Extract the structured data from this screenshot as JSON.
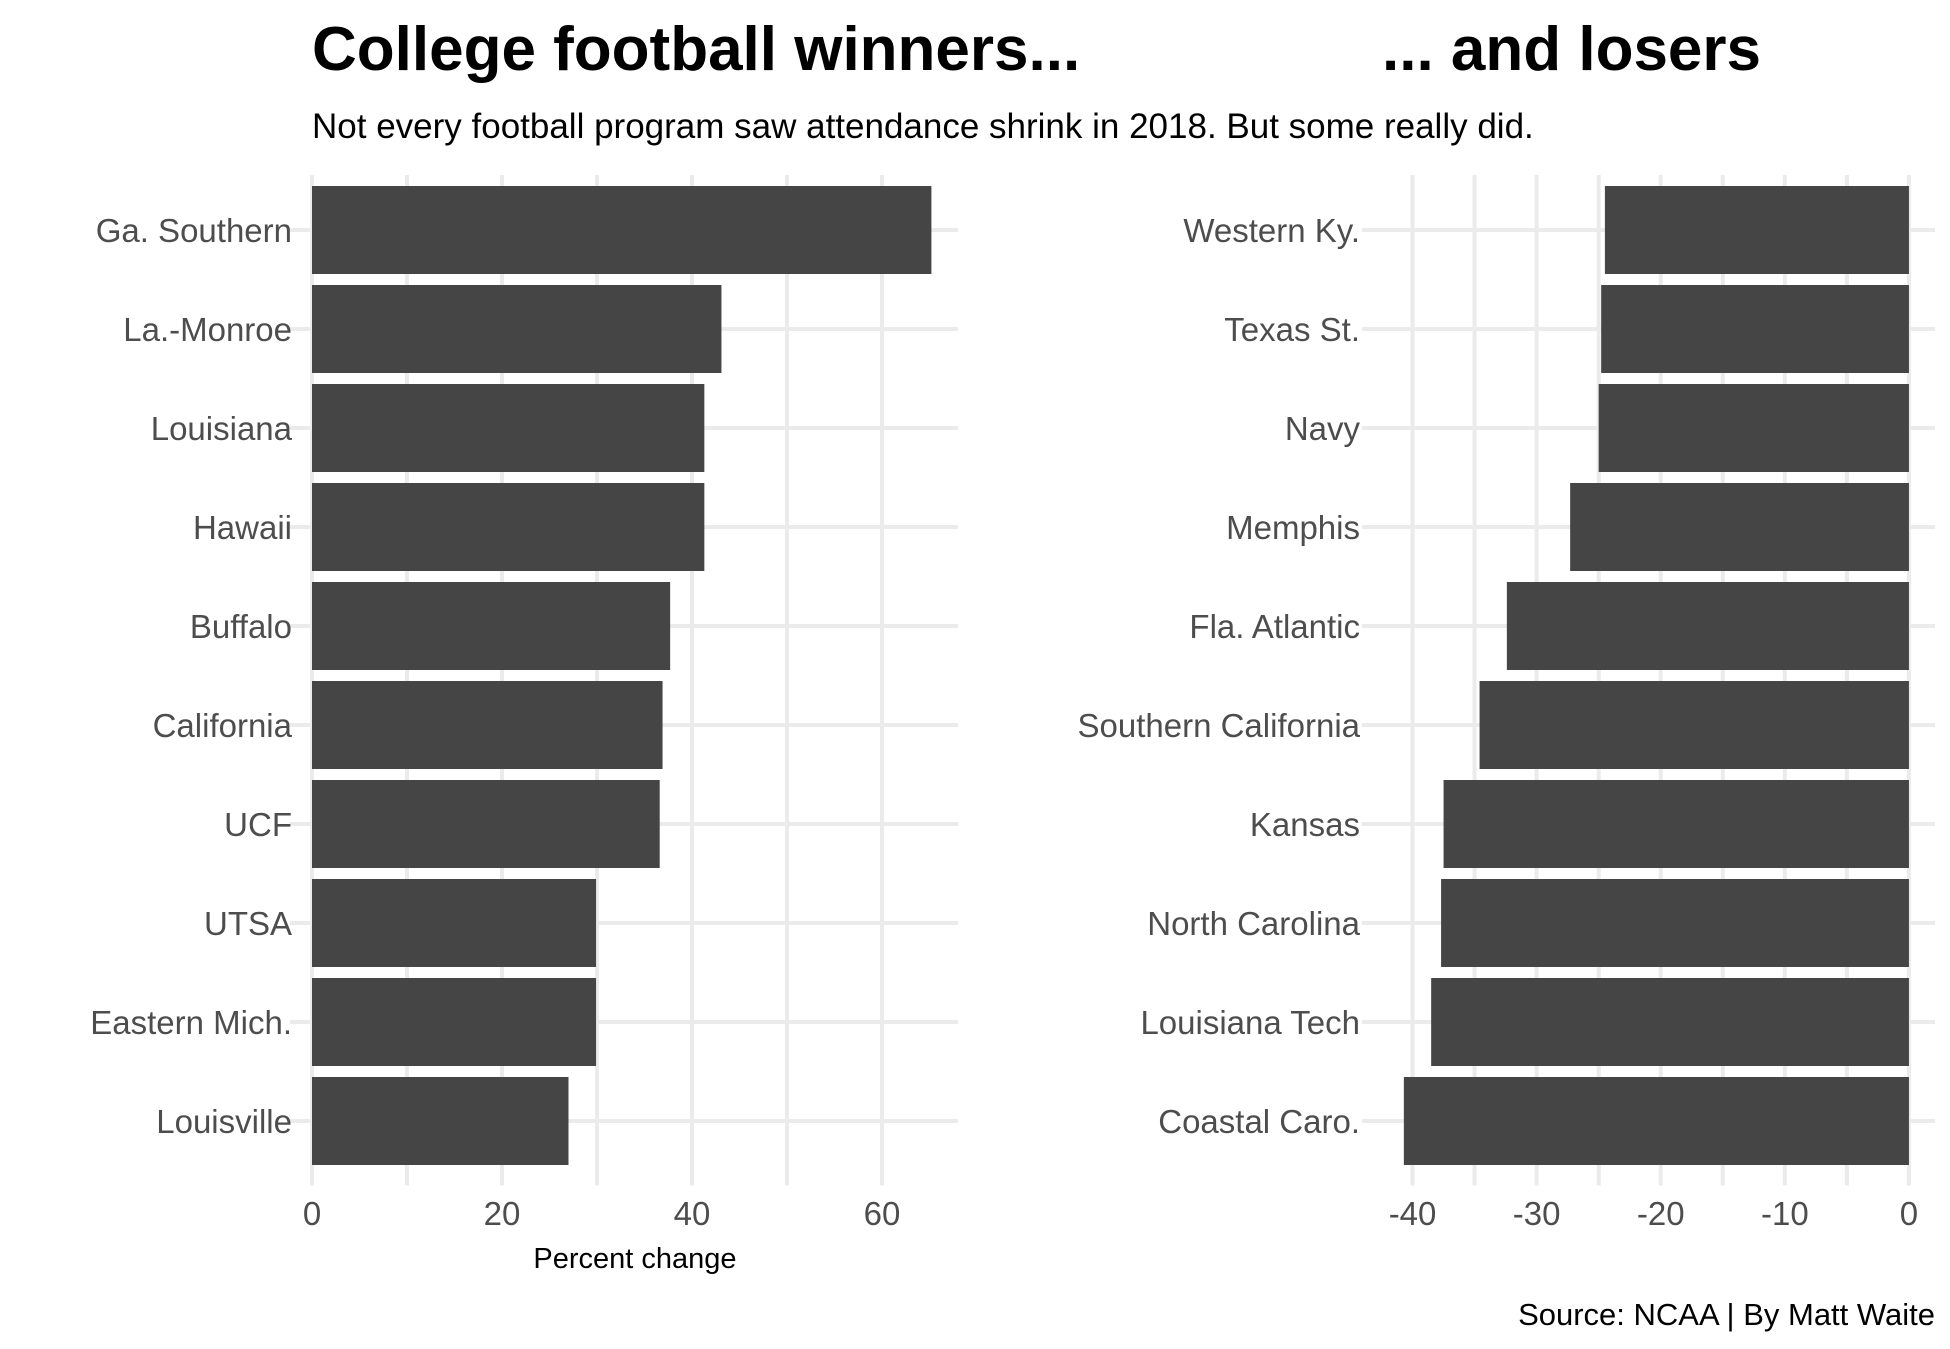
{
  "colors": {
    "bar": "#454545",
    "grid": "#ebebeb",
    "label": "#4d4d4d"
  },
  "chart_data": [
    {
      "type": "bar",
      "orientation": "horizontal",
      "title": "College football winners...",
      "subtitle": "Not every football program saw attendance shrink in 2018. But some really did.",
      "xlabel": "Percent change",
      "ylabel": "",
      "categories": [
        "Ga. Southern",
        "La.-Monroe",
        "Louisiana",
        "Hawaii",
        "Buffalo",
        "California",
        "UCF",
        "UTSA",
        "Eastern Mich.",
        "Louisville"
      ],
      "values": [
        65.2,
        43.1,
        41.3,
        41.3,
        37.7,
        36.9,
        36.6,
        29.9,
        29.9,
        27.0
      ],
      "xlim": [
        0,
        68
      ],
      "ticks": [
        0,
        20,
        40,
        60
      ],
      "grid": true,
      "legend": "none"
    },
    {
      "type": "bar",
      "orientation": "horizontal",
      "title": "... and losers",
      "xlabel": "",
      "ylabel": "",
      "categories": [
        "Western Ky.",
        "Texas St.",
        "Navy",
        "Memphis",
        "Fla. Atlantic",
        "Southern California",
        "Kansas",
        "North Carolina",
        "Louisiana Tech",
        "Coastal Caro."
      ],
      "values": [
        -24.5,
        -24.8,
        -25.0,
        -27.3,
        -32.4,
        -34.6,
        -37.5,
        -37.7,
        -38.5,
        -40.7
      ],
      "xlim": [
        -42.3,
        2.1
      ],
      "ticks": [
        -40,
        -30,
        -20,
        -10,
        0
      ],
      "grid": true,
      "legend": "none"
    }
  ],
  "caption": "Source: NCAA | By Matt Waite"
}
